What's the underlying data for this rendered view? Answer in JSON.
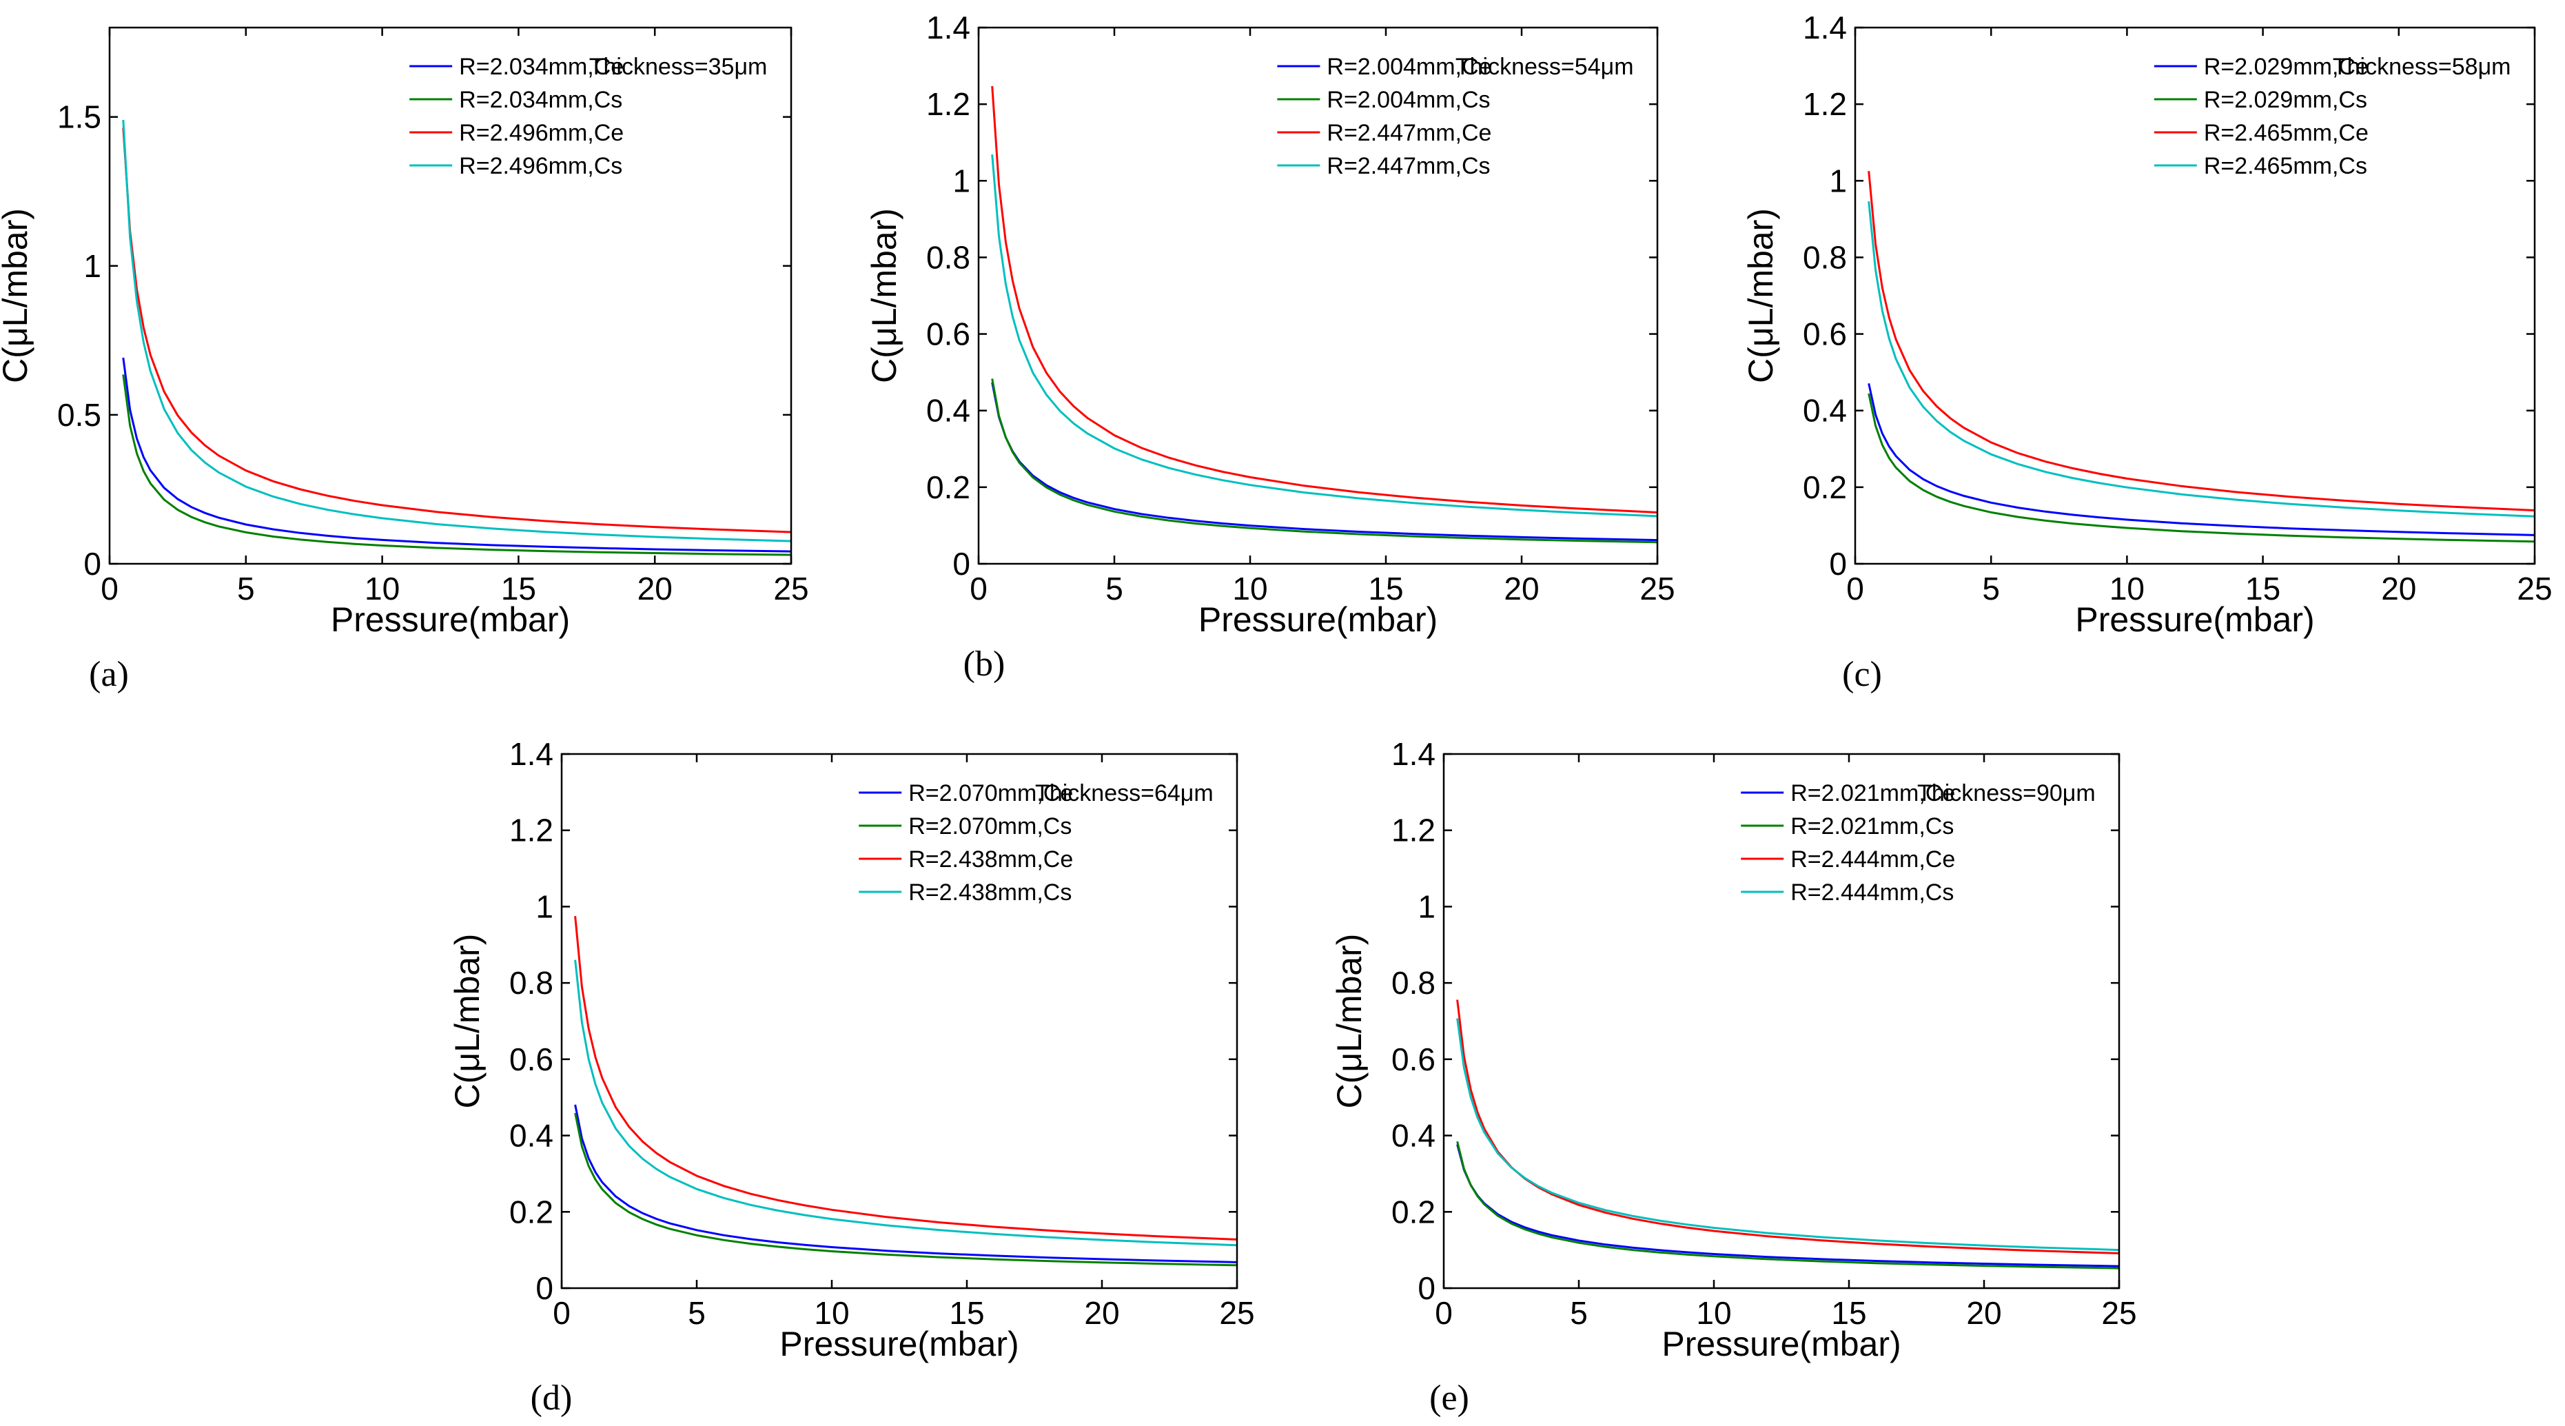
{
  "chart_data": [
    {
      "type": "line",
      "panel_label": "(a)",
      "xlabel": "Pressure(mbar)",
      "ylabel": "C(μL/mbar)",
      "xlim": [
        0,
        25
      ],
      "ylim": [
        0,
        1.8
      ],
      "xticks": [
        0,
        5,
        10,
        15,
        20,
        25
      ],
      "yticks": [
        0,
        0.5,
        1,
        1.5
      ],
      "ytick_labels": [
        "0",
        "0.5",
        "1",
        "1.5"
      ],
      "annotation": "Thickness=35μm",
      "legend_location": "top-right",
      "grid": false,
      "series": [
        {
          "name": "R=2.034mm,Ce",
          "color": "#0000ff",
          "a": 0.42,
          "p": 0.72
        },
        {
          "name": "R=2.034mm,Cs",
          "color": "#008000",
          "a": 0.37,
          "p": 0.78
        },
        {
          "name": "R=2.496mm,Ce",
          "color": "#ff0000",
          "a": 0.92,
          "p": 0.67
        },
        {
          "name": "R=2.496mm,Cs",
          "color": "#00bfbf",
          "a": 0.88,
          "p": 0.76
        }
      ]
    },
    {
      "type": "line",
      "panel_label": "(b)",
      "xlabel": "Pressure(mbar)",
      "ylabel": "C(μL/mbar)",
      "xlim": [
        0,
        25
      ],
      "ylim": [
        0,
        1.4
      ],
      "xticks": [
        0,
        5,
        10,
        15,
        20,
        25
      ],
      "yticks": [
        0,
        0.2,
        0.4,
        0.6,
        0.8,
        1,
        1.2,
        1.4
      ],
      "ytick_labels": [
        "0",
        "0.2",
        "0.4",
        "0.6",
        "0.8",
        "1",
        "1.2",
        "1.4"
      ],
      "annotation": "Thickness=54μm",
      "legend_location": "top-right",
      "grid": false,
      "series": [
        {
          "name": "R=2.004mm,Ce",
          "color": "#0000ff",
          "a": 0.33,
          "p": 0.52
        },
        {
          "name": "R=2.004mm,Cs",
          "color": "#008000",
          "a": 0.33,
          "p": 0.55
        },
        {
          "name": "R=2.447mm,Ce",
          "color": "#ff0000",
          "a": 0.84,
          "p": 0.57
        },
        {
          "name": "R=2.447mm,Cs",
          "color": "#00bfbf",
          "a": 0.73,
          "p": 0.55
        }
      ]
    },
    {
      "type": "line",
      "panel_label": "(c)",
      "xlabel": "Pressure(mbar)",
      "ylabel": "C(μL/mbar)",
      "xlim": [
        0,
        25
      ],
      "ylim": [
        0,
        1.4
      ],
      "xticks": [
        0,
        5,
        10,
        15,
        20,
        25
      ],
      "yticks": [
        0,
        0.2,
        0.4,
        0.6,
        0.8,
        1,
        1.2,
        1.4
      ],
      "ytick_labels": [
        "0",
        "0.2",
        "0.4",
        "0.6",
        "0.8",
        "1",
        "1.2",
        "1.4"
      ],
      "annotation": "Thickness=58μm",
      "legend_location": "top-right",
      "grid": false,
      "series": [
        {
          "name": "R=2.029mm,Ce",
          "color": "#0000ff",
          "a": 0.34,
          "p": 0.47
        },
        {
          "name": "R=2.029mm,Cs",
          "color": "#008000",
          "a": 0.31,
          "p": 0.52
        },
        {
          "name": "R=2.465mm,Ce",
          "color": "#ff0000",
          "a": 0.72,
          "p": 0.51
        },
        {
          "name": "R=2.465mm,Cs",
          "color": "#00bfbf",
          "a": 0.66,
          "p": 0.52
        }
      ]
    },
    {
      "type": "line",
      "panel_label": "(d)",
      "xlabel": "Pressure(mbar)",
      "ylabel": "C(μL/mbar)",
      "xlim": [
        0,
        25
      ],
      "ylim": [
        0,
        1.4
      ],
      "xticks": [
        0,
        5,
        10,
        15,
        20,
        25
      ],
      "yticks": [
        0,
        0.2,
        0.4,
        0.6,
        0.8,
        1,
        1.2,
        1.4
      ],
      "ytick_labels": [
        "0",
        "0.2",
        "0.4",
        "0.6",
        "0.8",
        "1",
        "1.2",
        "1.4"
      ],
      "annotation": "Thickness=64μm",
      "legend_location": "top-right",
      "grid": false,
      "series": [
        {
          "name": "R=2.070mm,Ce",
          "color": "#0000ff",
          "a": 0.34,
          "p": 0.5
        },
        {
          "name": "R=2.070mm,Cs",
          "color": "#008000",
          "a": 0.32,
          "p": 0.52
        },
        {
          "name": "R=2.438mm,Ce",
          "color": "#ff0000",
          "a": 0.68,
          "p": 0.52
        },
        {
          "name": "R=2.438mm,Cs",
          "color": "#00bfbf",
          "a": 0.6,
          "p": 0.52
        }
      ]
    },
    {
      "type": "line",
      "panel_label": "(e)",
      "xlabel": "Pressure(mbar)",
      "ylabel": "C(μL/mbar)",
      "xlim": [
        0,
        25
      ],
      "ylim": [
        0,
        1.4
      ],
      "xticks": [
        0,
        5,
        10,
        15,
        20,
        25
      ],
      "yticks": [
        0,
        0.2,
        0.4,
        0.6,
        0.8,
        1,
        1.2,
        1.4
      ],
      "ytick_labels": [
        "0",
        "0.2",
        "0.4",
        "0.6",
        "0.8",
        "1",
        "1.2",
        "1.4"
      ],
      "annotation": "Thickness=90μm",
      "legend_location": "top-right",
      "grid": false,
      "series": [
        {
          "name": "R=2.021mm,Ce",
          "color": "#0000ff",
          "a": 0.27,
          "p": 0.48
        },
        {
          "name": "R=2.021mm,Cs",
          "color": "#008000",
          "a": 0.27,
          "p": 0.51
        },
        {
          "name": "R=2.444mm,Ce",
          "color": "#ff0000",
          "a": 0.52,
          "p": 0.54
        },
        {
          "name": "R=2.444mm,Cs",
          "color": "#00bfbf",
          "a": 0.5,
          "p": 0.5
        }
      ]
    }
  ],
  "x_samples": [
    0.5,
    0.75,
    1,
    1.25,
    1.5,
    2,
    2.5,
    3,
    3.5,
    4,
    5,
    6,
    7,
    8,
    9,
    10,
    12,
    14,
    16,
    18,
    20,
    22,
    25
  ]
}
